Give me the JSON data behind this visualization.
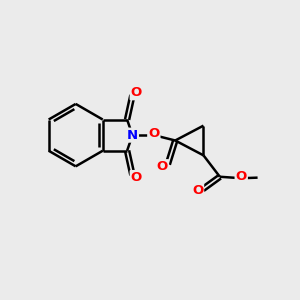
{
  "bg_color": "#ebebeb",
  "line_color": "#000000",
  "bond_width": 1.8,
  "figsize": [
    3.0,
    3.0
  ],
  "dpi": 100,
  "atom_colors": {
    "O": "#ff0000",
    "N": "#0000ff",
    "C": "#000000"
  }
}
